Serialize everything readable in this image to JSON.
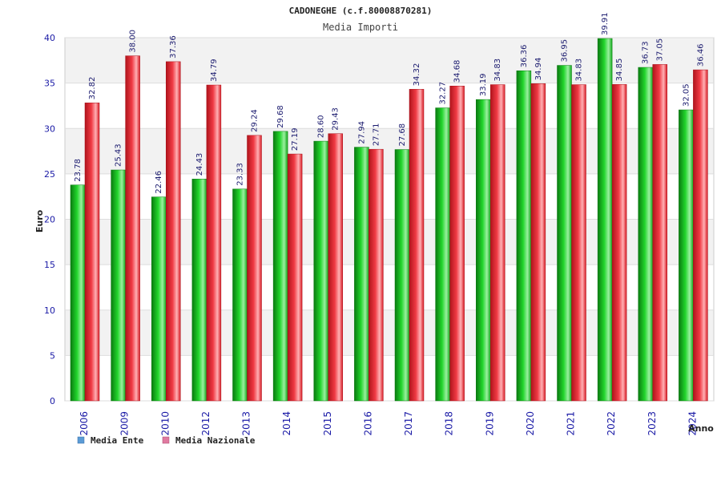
{
  "chart_data": {
    "type": "bar",
    "title": "CADONEGHE (c.f.80008870281)",
    "subtitle": "Media Importi",
    "xlabel": "Anno",
    "ylabel": "Euro",
    "ylim": [
      0,
      40
    ],
    "yticks": [
      0,
      5,
      10,
      15,
      20,
      25,
      30,
      35,
      40
    ],
    "grid": true,
    "legend_position": "bottom-left",
    "categories": [
      "2006",
      "2009",
      "2010",
      "2012",
      "2013",
      "2014",
      "2015",
      "2016",
      "2017",
      "2018",
      "2019",
      "2020",
      "2021",
      "2022",
      "2023",
      "2024"
    ],
    "series": [
      {
        "name": "Media Ente",
        "values": [
          23.78,
          25.43,
          22.46,
          24.43,
          23.33,
          29.68,
          28.6,
          27.94,
          27.68,
          32.27,
          33.19,
          36.36,
          36.95,
          39.91,
          36.73,
          32.05
        ],
        "labels": [
          "23.78",
          "25.43",
          "22.46",
          "24.43",
          "23.33",
          "29.68",
          "28.60",
          "27.94",
          "27.68",
          "32.27",
          "33.19",
          "36.36",
          "36.95",
          "39.91",
          "36.73",
          "32.05"
        ],
        "color": "#12b81c",
        "legend_color": "#5b9bd5"
      },
      {
        "name": "Media Nazionale",
        "values": [
          32.82,
          38.0,
          37.36,
          34.79,
          29.24,
          27.19,
          29.43,
          27.71,
          34.32,
          34.68,
          34.83,
          34.94,
          34.83,
          34.85,
          37.05,
          36.46
        ],
        "labels": [
          "32.82",
          "38.00",
          "37.36",
          "34.79",
          "29.24",
          "27.19",
          "29.43",
          "27.71",
          "34.32",
          "34.68",
          "34.83",
          "34.94",
          "34.83",
          "34.85",
          "37.05",
          "36.46"
        ],
        "color": "#e8202a",
        "legend_color": "#e07aa0"
      }
    ]
  }
}
